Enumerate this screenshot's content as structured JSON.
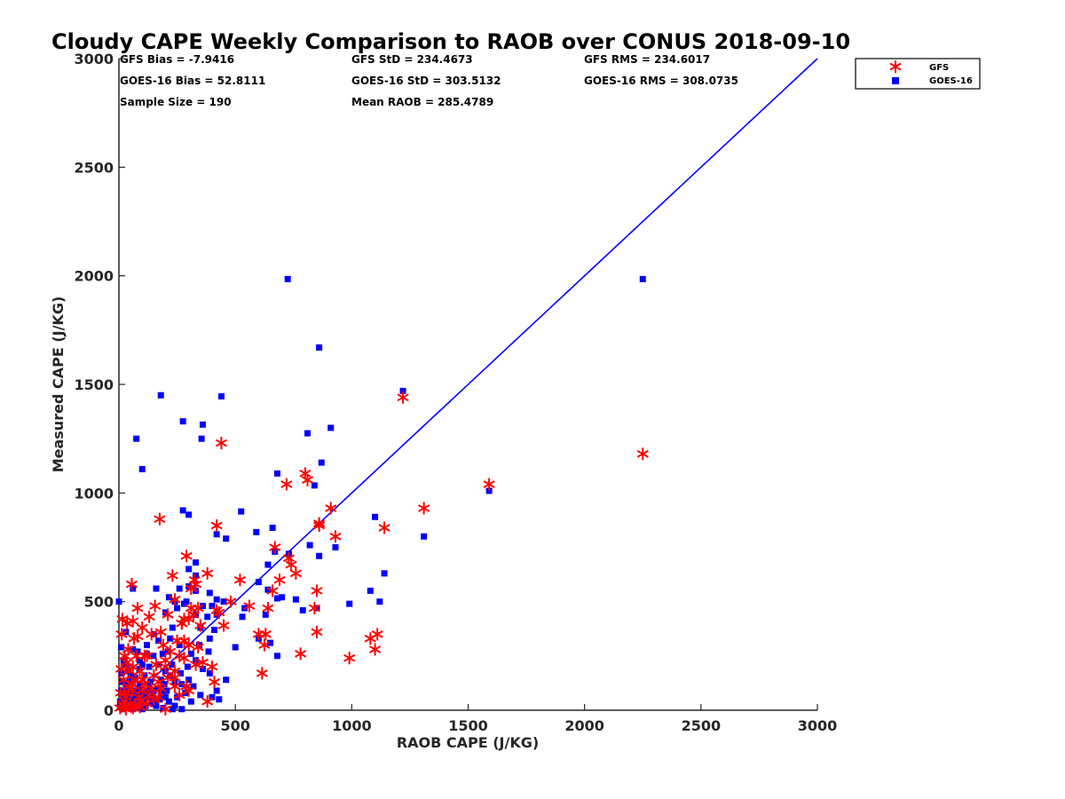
{
  "chart_data": {
    "type": "scatter",
    "title": "Cloudy CAPE Weekly Comparison to RAOB over CONUS 2018-09-10",
    "xlabel": "RAOB CAPE (J/KG)",
    "ylabel": "Measured CAPE (J/KG)",
    "xlim": [
      0,
      3000
    ],
    "ylim": [
      0,
      3000
    ],
    "xticks": [
      "0",
      "500",
      "1000",
      "1500",
      "2000",
      "2500",
      "3000"
    ],
    "yticks": [
      "0",
      "500",
      "1000",
      "1500",
      "2000",
      "2500",
      "3000"
    ],
    "grid": false,
    "legend_position": "top-right",
    "stats": {
      "gfs_bias": "GFS Bias = -7.9416",
      "gfs_std": "GFS StD = 234.4673",
      "gfs_rms": "GFS RMS = 234.6017",
      "goes_bias": "GOES-16 Bias = 52.8111",
      "goes_std": "GOES-16 StD = 303.5132",
      "goes_rms": "GOES-16 RMS = 308.0735",
      "sample_size": "Sample Size = 190",
      "mean_raob": "Mean RAOB = 285.4789"
    },
    "reference_line": {
      "x": [
        0,
        3000
      ],
      "y": [
        0,
        3000
      ],
      "color": "#0000ff"
    },
    "series": [
      {
        "name": "GFS",
        "marker": "asterisk",
        "color": "#ff0000",
        "points": [
          [
            440,
            1230
          ],
          [
            175,
            880
          ],
          [
            55,
            580
          ],
          [
            60,
            410
          ],
          [
            80,
            470
          ],
          [
            100,
            380
          ],
          [
            155,
            480
          ],
          [
            180,
            360
          ],
          [
            210,
            440
          ],
          [
            240,
            510
          ],
          [
            270,
            400
          ],
          [
            290,
            710
          ],
          [
            310,
            560
          ],
          [
            325,
            600
          ],
          [
            340,
            470
          ],
          [
            380,
            630
          ],
          [
            420,
            850
          ],
          [
            430,
            450
          ],
          [
            450,
            390
          ],
          [
            480,
            500
          ],
          [
            520,
            600
          ],
          [
            560,
            480
          ],
          [
            600,
            350
          ],
          [
            615,
            170
          ],
          [
            625,
            300
          ],
          [
            640,
            470
          ],
          [
            660,
            550
          ],
          [
            670,
            750
          ],
          [
            690,
            600
          ],
          [
            720,
            1040
          ],
          [
            730,
            700
          ],
          [
            760,
            630
          ],
          [
            780,
            260
          ],
          [
            800,
            1090
          ],
          [
            810,
            1060
          ],
          [
            840,
            470
          ],
          [
            850,
            550
          ],
          [
            860,
            860
          ],
          [
            860,
            850
          ],
          [
            910,
            930
          ],
          [
            930,
            800
          ],
          [
            990,
            240
          ],
          [
            1080,
            330
          ],
          [
            1100,
            280
          ],
          [
            1110,
            350
          ],
          [
            1140,
            840
          ],
          [
            1220,
            1440
          ],
          [
            1310,
            930
          ],
          [
            1590,
            1040
          ],
          [
            2250,
            1180
          ],
          [
            850,
            360
          ],
          [
            740,
            670
          ],
          [
            630,
            350
          ],
          [
            330,
            580
          ],
          [
            300,
            420
          ],
          [
            280,
            320
          ],
          [
            260,
            250
          ],
          [
            240,
            180
          ],
          [
            230,
            620
          ],
          [
            210,
            150
          ],
          [
            190,
            300
          ],
          [
            170,
            130
          ],
          [
            150,
            160
          ],
          [
            140,
            350
          ],
          [
            120,
            250
          ],
          [
            110,
            120
          ],
          [
            100,
            90
          ],
          [
            90,
            180
          ],
          [
            85,
            60
          ],
          [
            75,
            250
          ],
          [
            70,
            140
          ],
          [
            65,
            330
          ],
          [
            60,
            90
          ],
          [
            50,
            30
          ],
          [
            45,
            180
          ],
          [
            40,
            110
          ],
          [
            35,
            400
          ],
          [
            30,
            60
          ],
          [
            25,
            250
          ],
          [
            20,
            140
          ],
          [
            15,
            30
          ],
          [
            10,
            190
          ],
          [
            8,
            80
          ],
          [
            5,
            10
          ],
          [
            12,
            350
          ],
          [
            30,
            5
          ],
          [
            60,
            10
          ],
          [
            90,
            15
          ],
          [
            120,
            30
          ],
          [
            150,
            50
          ],
          [
            200,
            5
          ],
          [
            260,
            70
          ],
          [
            290,
            110
          ],
          [
            300,
            90
          ],
          [
            330,
            210
          ],
          [
            360,
            220
          ],
          [
            380,
            40
          ],
          [
            400,
            200
          ],
          [
            410,
            130
          ],
          [
            420,
            460
          ],
          [
            270,
            400
          ],
          [
            350,
            390
          ],
          [
            320,
            440
          ],
          [
            300,
            300
          ],
          [
            250,
            320
          ],
          [
            220,
            270
          ],
          [
            200,
            230
          ],
          [
            180,
            100
          ],
          [
            160,
            210
          ],
          [
            140,
            100
          ],
          [
            130,
            430
          ],
          [
            110,
            250
          ],
          [
            80,
            340
          ],
          [
            70,
            20
          ],
          [
            55,
            120
          ],
          [
            40,
            280
          ],
          [
            25,
            80
          ],
          [
            15,
            420
          ],
          [
            240,
            110
          ],
          [
            280,
            240
          ],
          [
            340,
            290
          ],
          [
            280,
            420
          ],
          [
            310,
            470
          ],
          [
            240,
            150
          ],
          [
            200,
            200
          ],
          [
            170,
            60
          ],
          [
            130,
            70
          ],
          [
            100,
            140
          ],
          [
            90,
            40
          ],
          [
            60,
            200
          ],
          [
            35,
            220
          ],
          [
            20,
            20
          ]
        ]
      },
      {
        "name": "GOES-16",
        "marker": "square",
        "color": "#0000ff",
        "points": [
          [
            725,
            1985
          ],
          [
            2250,
            1985
          ],
          [
            860,
            1670
          ],
          [
            1220,
            1470
          ],
          [
            180,
            1450
          ],
          [
            440,
            1445
          ],
          [
            275,
            1330
          ],
          [
            360,
            1315
          ],
          [
            910,
            1300
          ],
          [
            810,
            1275
          ],
          [
            75,
            1250
          ],
          [
            355,
            1250
          ],
          [
            100,
            1110
          ],
          [
            870,
            1140
          ],
          [
            680,
            1090
          ],
          [
            840,
            1035
          ],
          [
            1590,
            1010
          ],
          [
            275,
            920
          ],
          [
            300,
            900
          ],
          [
            525,
            915
          ],
          [
            1100,
            890
          ],
          [
            590,
            820
          ],
          [
            660,
            840
          ],
          [
            420,
            810
          ],
          [
            460,
            790
          ],
          [
            1310,
            800
          ],
          [
            820,
            760
          ],
          [
            930,
            750
          ],
          [
            730,
            720
          ],
          [
            860,
            710
          ],
          [
            670,
            730
          ],
          [
            300,
            650
          ],
          [
            330,
            680
          ],
          [
            640,
            670
          ],
          [
            1140,
            630
          ],
          [
            330,
            620
          ],
          [
            60,
            560
          ],
          [
            160,
            560
          ],
          [
            330,
            550
          ],
          [
            390,
            540
          ],
          [
            600,
            590
          ],
          [
            640,
            555
          ],
          [
            1080,
            550
          ],
          [
            680,
            515
          ],
          [
            1120,
            500
          ],
          [
            0,
            500
          ],
          [
            240,
            500
          ],
          [
            280,
            490
          ],
          [
            420,
            510
          ],
          [
            400,
            480
          ],
          [
            760,
            510
          ],
          [
            790,
            460
          ],
          [
            850,
            470
          ],
          [
            990,
            490
          ],
          [
            540,
            470
          ],
          [
            530,
            430
          ],
          [
            200,
            450
          ],
          [
            250,
            470
          ],
          [
            360,
            480
          ],
          [
            290,
            500
          ],
          [
            330,
            440
          ],
          [
            420,
            440
          ],
          [
            630,
            440
          ],
          [
            650,
            310
          ],
          [
            700,
            520
          ],
          [
            230,
            380
          ],
          [
            170,
            320
          ],
          [
            120,
            260
          ],
          [
            150,
            350
          ],
          [
            220,
            330
          ],
          [
            260,
            300
          ],
          [
            310,
            260
          ],
          [
            350,
            380
          ],
          [
            390,
            330
          ],
          [
            410,
            370
          ],
          [
            500,
            290
          ],
          [
            600,
            330
          ],
          [
            680,
            250
          ],
          [
            170,
            210
          ],
          [
            120,
            300
          ],
          [
            80,
            270
          ],
          [
            100,
            210
          ],
          [
            60,
            280
          ],
          [
            30,
            360
          ],
          [
            10,
            290
          ],
          [
            20,
            230
          ],
          [
            40,
            180
          ],
          [
            70,
            150
          ],
          [
            90,
            120
          ],
          [
            110,
            160
          ],
          [
            130,
            110
          ],
          [
            150,
            90
          ],
          [
            180,
            140
          ],
          [
            200,
            180
          ],
          [
            220,
            160
          ],
          [
            240,
            130
          ],
          [
            270,
            120
          ],
          [
            300,
            140
          ],
          [
            330,
            230
          ],
          [
            360,
            190
          ],
          [
            390,
            170
          ],
          [
            420,
            90
          ],
          [
            460,
            140
          ],
          [
            400,
            60
          ],
          [
            430,
            50
          ],
          [
            350,
            70
          ],
          [
            310,
            40
          ],
          [
            270,
            5
          ],
          [
            230,
            5
          ],
          [
            190,
            10
          ],
          [
            160,
            20
          ],
          [
            140,
            40
          ],
          [
            120,
            60
          ],
          [
            100,
            30
          ],
          [
            80,
            10
          ],
          [
            60,
            5
          ],
          [
            40,
            20
          ],
          [
            20,
            5
          ],
          [
            5,
            40
          ],
          [
            10,
            90
          ],
          [
            15,
            130
          ],
          [
            25,
            60
          ],
          [
            35,
            100
          ],
          [
            45,
            130
          ],
          [
            50,
            50
          ],
          [
            55,
            20
          ],
          [
            65,
            90
          ],
          [
            75,
            60
          ],
          [
            85,
            100
          ],
          [
            95,
            70
          ],
          [
            105,
            40
          ],
          [
            115,
            20
          ],
          [
            125,
            90
          ],
          [
            135,
            130
          ],
          [
            145,
            70
          ],
          [
            165,
            100
          ],
          [
            175,
            50
          ],
          [
            185,
            80
          ],
          [
            195,
            120
          ],
          [
            205,
            90
          ],
          [
            215,
            40
          ],
          [
            250,
            60
          ],
          [
            285,
            80
          ],
          [
            320,
            110
          ],
          [
            210,
            270
          ],
          [
            130,
            200
          ],
          [
            110,
            80
          ],
          [
            90,
            230
          ],
          [
            70,
            40
          ],
          [
            50,
            160
          ],
          [
            30,
            120
          ],
          [
            20,
            60
          ],
          [
            5,
            15
          ],
          [
            12,
            170
          ],
          [
            28,
            210
          ],
          [
            42,
            80
          ],
          [
            58,
            140
          ],
          [
            88,
            190
          ],
          [
            148,
            250
          ],
          [
            188,
            260
          ],
          [
            228,
            210
          ],
          [
            265,
            170
          ],
          [
            295,
            200
          ],
          [
            345,
            300
          ],
          [
            385,
            270
          ],
          [
            215,
            520
          ],
          [
            260,
            560
          ],
          [
            300,
            570
          ],
          [
            380,
            430
          ],
          [
            450,
            500
          ],
          [
            150,
            30
          ],
          [
            200,
            60
          ],
          [
            240,
            20
          ],
          [
            100,
            5
          ]
        ]
      }
    ]
  }
}
